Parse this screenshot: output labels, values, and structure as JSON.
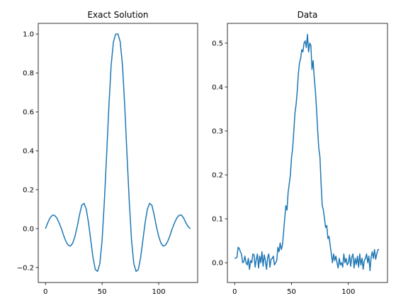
{
  "chart_data": [
    {
      "type": "line",
      "title": "Exact Solution",
      "xlabel": "",
      "ylabel": "",
      "xlim": [
        -6.4,
        134.4
      ],
      "ylim": [
        -0.277,
        1.055
      ],
      "xticks": [
        0,
        50,
        100
      ],
      "yticks": [
        -0.2,
        0.0,
        0.2,
        0.4,
        0.6,
        0.8,
        1.0
      ],
      "xtick_labels": [
        "0",
        "50",
        "100"
      ],
      "ytick_labels": [
        "−0.2",
        "0.0",
        "0.2",
        "0.4",
        "0.6",
        "0.8",
        "1.0"
      ],
      "grid": false,
      "color": "#1f77b4",
      "series": [
        {
          "x": [
            0,
            2,
            4,
            6,
            7,
            8,
            10,
            12,
            14,
            16,
            18,
            20,
            22,
            24,
            26,
            28,
            30,
            32,
            34,
            36,
            38,
            40,
            42,
            44,
            46,
            48,
            50,
            52,
            54,
            56,
            58,
            60,
            62,
            64,
            66,
            68,
            70,
            72,
            74,
            76,
            78,
            80,
            82,
            84,
            86,
            88,
            90,
            92,
            94,
            96,
            98,
            100,
            102,
            104,
            106,
            108,
            110,
            112,
            114,
            116,
            118,
            120,
            122,
            124,
            126,
            128
          ],
          "y": [
            0.0,
            0.03,
            0.055,
            0.068,
            0.07,
            0.068,
            0.055,
            0.03,
            0.0,
            -0.035,
            -0.065,
            -0.085,
            -0.09,
            -0.075,
            -0.04,
            0.01,
            0.07,
            0.12,
            0.13,
            0.1,
            0.03,
            -0.06,
            -0.15,
            -0.21,
            -0.22,
            -0.18,
            -0.06,
            0.14,
            0.38,
            0.63,
            0.84,
            0.96,
            1.0,
            1.0,
            0.96,
            0.84,
            0.63,
            0.38,
            0.14,
            -0.06,
            -0.18,
            -0.22,
            -0.21,
            -0.15,
            -0.06,
            0.03,
            0.1,
            0.13,
            0.12,
            0.07,
            0.01,
            -0.04,
            -0.075,
            -0.09,
            -0.085,
            -0.065,
            -0.035,
            0.0,
            0.03,
            0.055,
            0.068,
            0.07,
            0.055,
            0.03,
            0.01,
            0.0
          ]
        }
      ]
    },
    {
      "type": "line",
      "title": "Data",
      "xlabel": "",
      "ylabel": "",
      "xlim": [
        -6.4,
        134.4
      ],
      "ylim": [
        -0.045,
        0.545
      ],
      "xticks": [
        0,
        50,
        100
      ],
      "yticks": [
        0.0,
        0.1,
        0.2,
        0.3,
        0.4,
        0.5
      ],
      "xtick_labels": [
        "0",
        "50",
        "100"
      ],
      "ytick_labels": [
        "0.0",
        "0.1",
        "0.2",
        "0.3",
        "0.4",
        "0.5"
      ],
      "grid": false,
      "color": "#1f77b4",
      "series": [
        {
          "x": [
            0,
            2,
            3,
            4,
            5,
            6,
            7,
            8,
            9,
            10,
            11,
            12,
            13,
            14,
            15,
            16,
            17,
            18,
            19,
            20,
            21,
            22,
            23,
            24,
            25,
            26,
            27,
            28,
            29,
            30,
            31,
            32,
            33,
            34,
            35,
            36,
            37,
            38,
            39,
            40,
            41,
            42,
            43,
            44,
            45,
            46,
            47,
            48,
            49,
            50,
            51,
            52,
            53,
            54,
            55,
            56,
            57,
            58,
            59,
            60,
            61,
            62,
            63,
            64,
            65,
            66,
            67,
            68,
            69,
            70,
            71,
            72,
            73,
            74,
            75,
            76,
            77,
            78,
            79,
            80,
            81,
            82,
            83,
            84,
            85,
            86,
            87,
            88,
            89,
            90,
            91,
            92,
            93,
            94,
            95,
            96,
            97,
            98,
            99,
            100,
            101,
            102,
            103,
            104,
            105,
            106,
            107,
            108,
            109,
            110,
            111,
            112,
            113,
            114,
            115,
            116,
            117,
            118,
            119,
            120,
            121,
            122,
            123,
            124,
            125,
            126,
            127
          ],
          "y": [
            0.01,
            0.012,
            0.035,
            0.033,
            0.025,
            0.02,
            0.0,
            0.002,
            0.015,
            0.0,
            -0.005,
            0.01,
            -0.015,
            0.005,
            0.0,
            0.02,
            0.018,
            -0.01,
            0.008,
            0.02,
            -0.012,
            0.015,
            0.0,
            0.025,
            -0.008,
            0.018,
            0.005,
            -0.015,
            0.012,
            0.02,
            -0.01,
            0.008,
            0.01,
            0.015,
            -0.005,
            0.0,
            0.005,
            0.035,
            0.025,
            0.045,
            0.03,
            0.04,
            0.07,
            0.1,
            0.13,
            0.12,
            0.16,
            0.18,
            0.2,
            0.24,
            0.26,
            0.3,
            0.34,
            0.36,
            0.39,
            0.43,
            0.455,
            0.465,
            0.485,
            0.48,
            0.5,
            0.505,
            0.49,
            0.52,
            0.48,
            0.5,
            0.495,
            0.44,
            0.46,
            0.42,
            0.39,
            0.35,
            0.3,
            0.26,
            0.24,
            0.18,
            0.13,
            0.12,
            0.1,
            0.08,
            0.085,
            0.055,
            0.06,
            0.04,
            0.02,
            0.0,
            0.02,
            0.005,
            0.015,
            0.0,
            -0.012,
            0.01,
            -0.005,
            0.0,
            -0.01,
            0.02,
            0.0,
            0.01,
            -0.005,
            0.0,
            0.018,
            -0.008,
            0.012,
            0.02,
            -0.012,
            0.01,
            -0.004,
            0.015,
            -0.01,
            0.02,
            -0.005,
            0.01,
            -0.015,
            0.005,
            0.01,
            0.02,
            0.0,
            0.015,
            -0.018,
            0.012,
            0.025,
            0.01,
            0.03,
            0.008,
            0.02,
            0.03,
            0.03
          ]
        }
      ]
    }
  ]
}
